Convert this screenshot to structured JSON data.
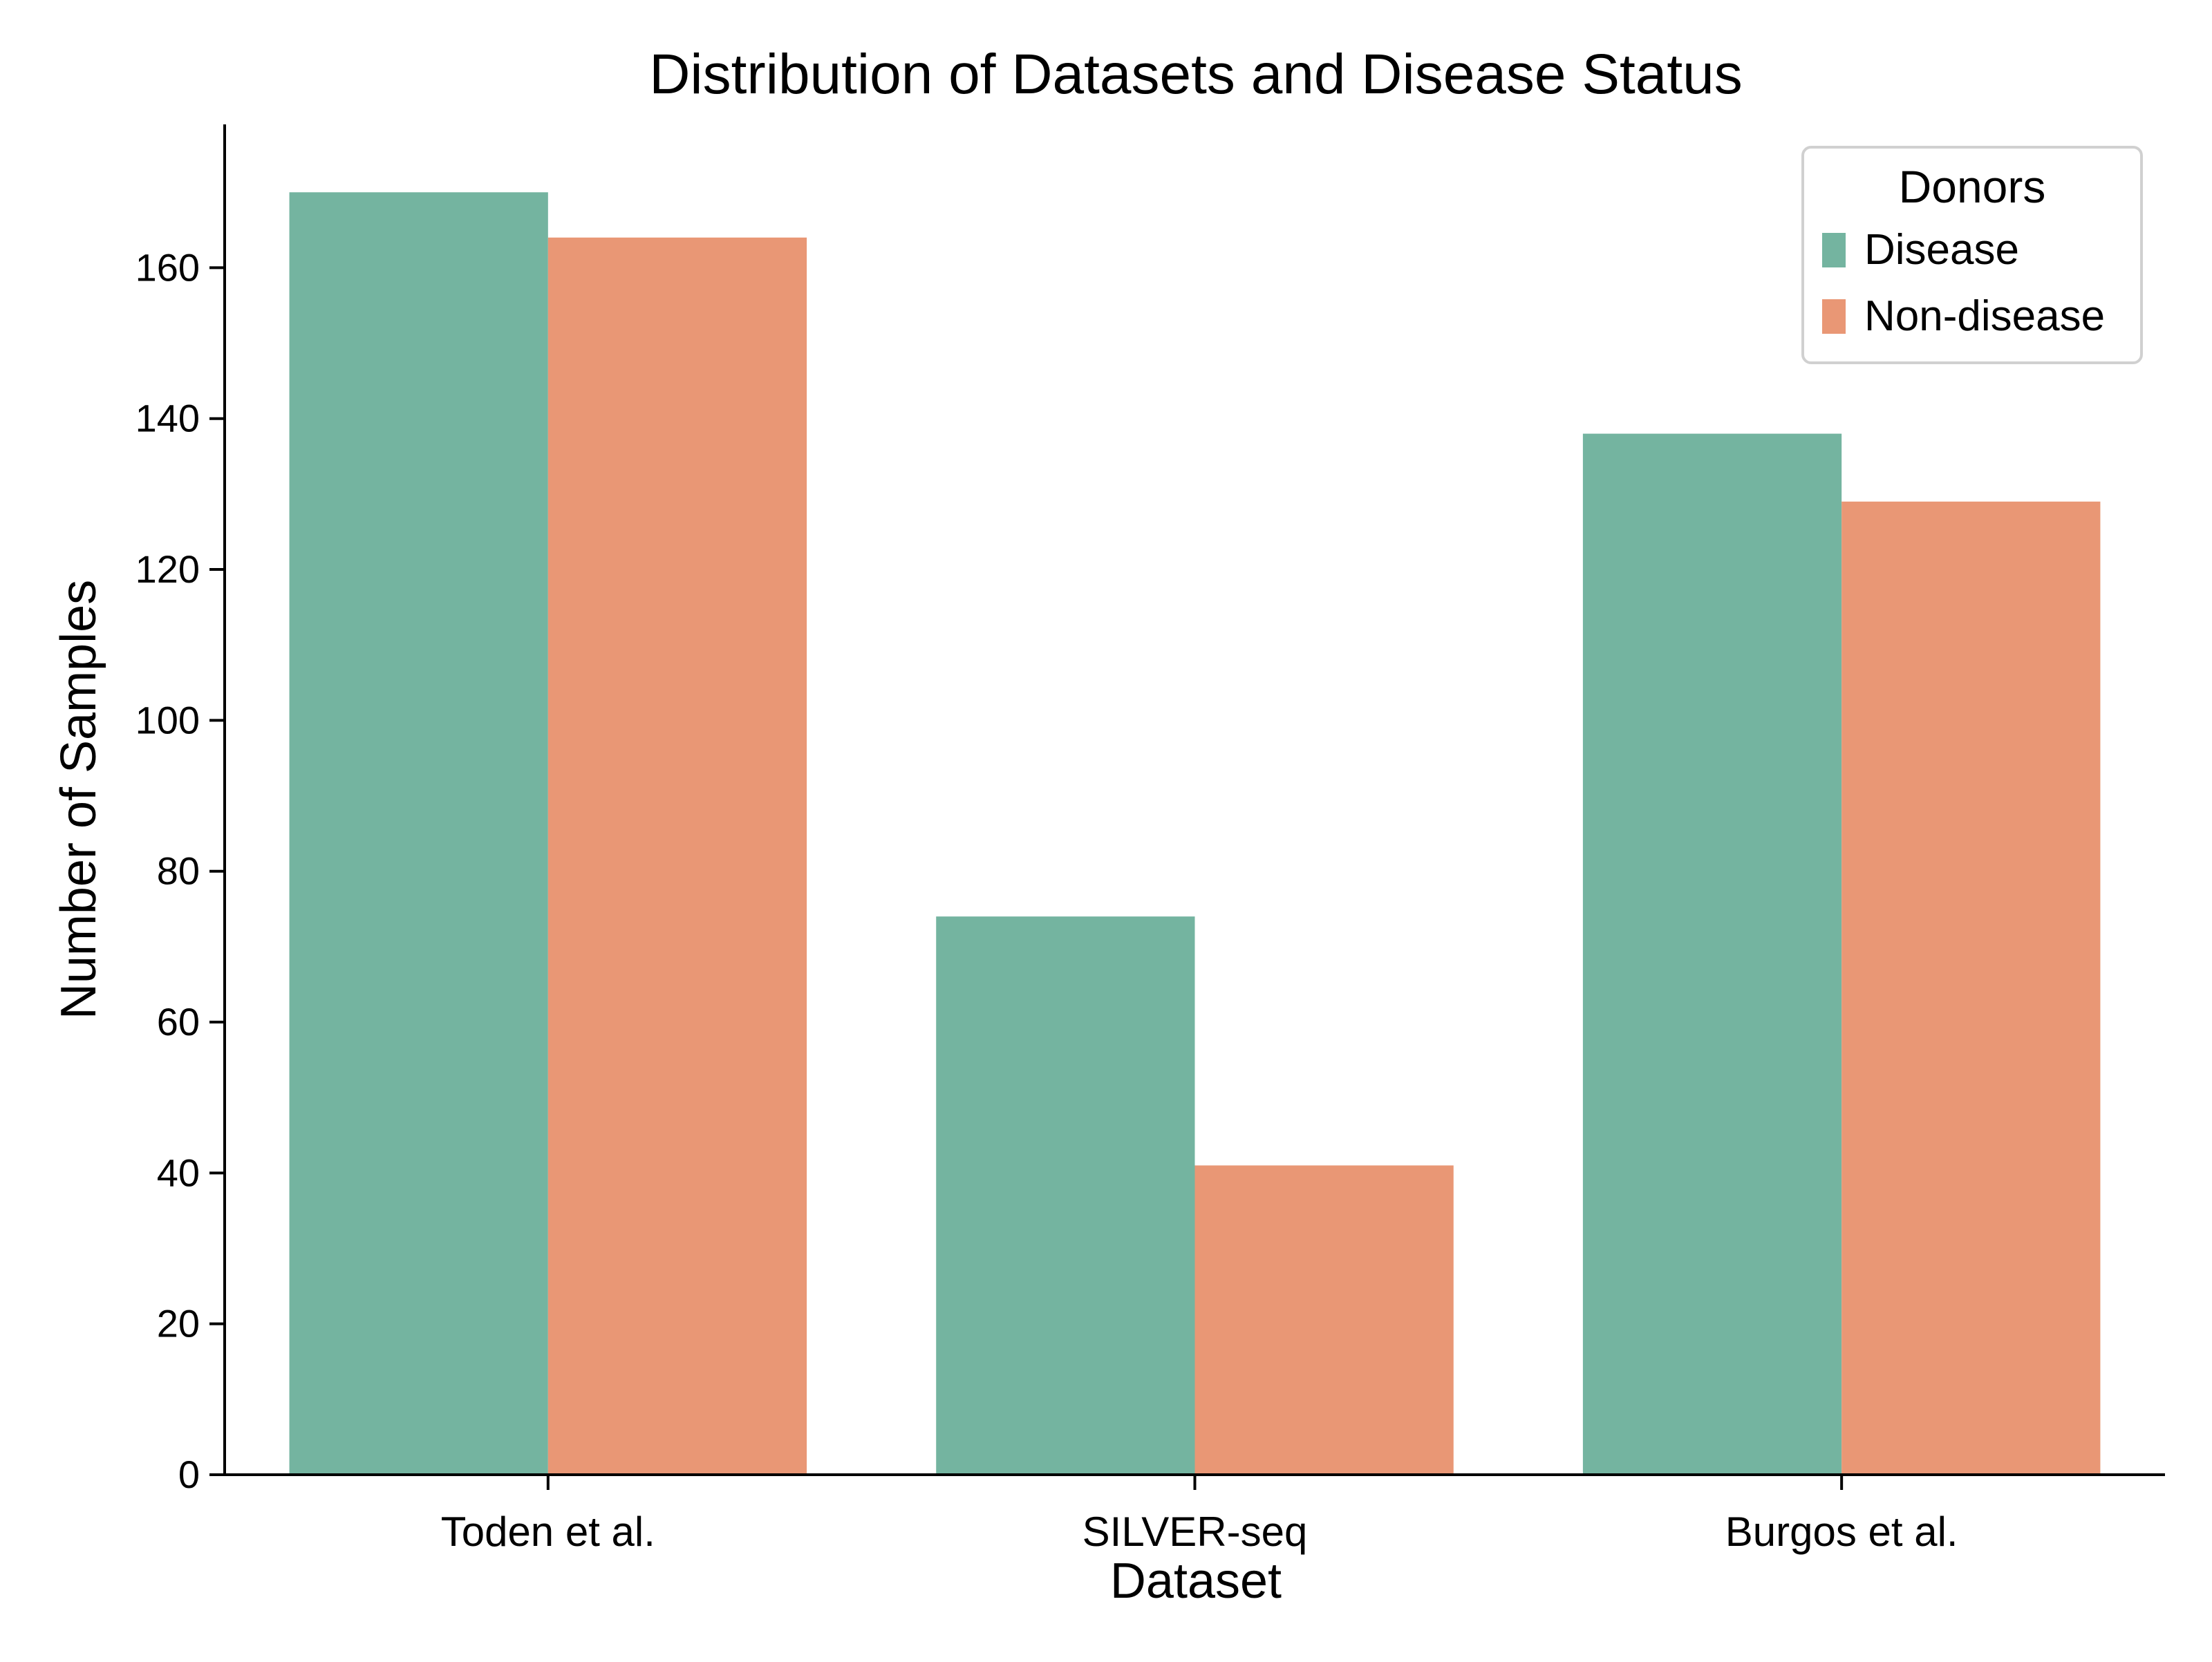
{
  "chart_data": {
    "type": "bar",
    "title": "Distribution of Datasets and Disease Status",
    "xlabel": "Dataset",
    "ylabel": "Number of Samples",
    "categories": [
      "Toden et al.",
      "SILVER-seq",
      "Burgos et al."
    ],
    "series": [
      {
        "name": "Disease",
        "values": [
          170,
          74,
          138
        ],
        "color": "#74b4a0"
      },
      {
        "name": "Non-disease",
        "values": [
          164,
          41,
          129
        ],
        "color": "#e99775"
      }
    ],
    "ylim": [
      0,
      179
    ],
    "yticks": [
      0,
      20,
      40,
      60,
      80,
      100,
      120,
      140,
      160
    ],
    "grid": false,
    "legend": {
      "title": "Donors",
      "placement": "top-right"
    }
  }
}
